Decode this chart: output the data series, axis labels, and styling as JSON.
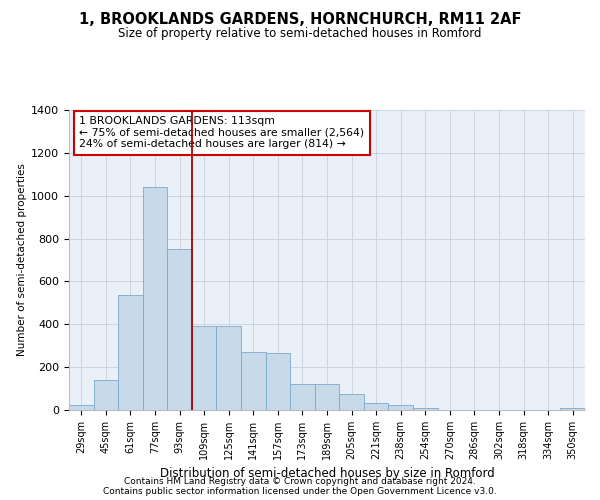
{
  "title1": "1, BROOKLANDS GARDENS, HORNCHURCH, RM11 2AF",
  "title2": "Size of property relative to semi-detached houses in Romford",
  "xlabel": "Distribution of semi-detached houses by size in Romford",
  "ylabel": "Number of semi-detached properties",
  "footnote1": "Contains HM Land Registry data © Crown copyright and database right 2024.",
  "footnote2": "Contains public sector information licensed under the Open Government Licence v3.0.",
  "annotation_line1": "1 BROOKLANDS GARDENS: 113sqm",
  "annotation_line2": "← 75% of semi-detached houses are smaller (2,564)",
  "annotation_line3": "24% of semi-detached houses are larger (814) →",
  "bar_color": "#c8d9ea",
  "bar_edge_color": "#7aaac8",
  "vertical_line_color": "#aa0000",
  "categories": [
    "29sqm",
    "45sqm",
    "61sqm",
    "77sqm",
    "93sqm",
    "109sqm",
    "125sqm",
    "141sqm",
    "157sqm",
    "173sqm",
    "189sqm",
    "205sqm",
    "221sqm",
    "238sqm",
    "254sqm",
    "270sqm",
    "286sqm",
    "302sqm",
    "318sqm",
    "334sqm",
    "350sqm"
  ],
  "values": [
    25,
    140,
    535,
    1040,
    750,
    390,
    390,
    270,
    265,
    120,
    120,
    75,
    35,
    25,
    10,
    0,
    0,
    0,
    0,
    0,
    10
  ],
  "ylim": [
    0,
    1400
  ],
  "yticks": [
    0,
    200,
    400,
    600,
    800,
    1000,
    1200,
    1400
  ],
  "vertical_line_x": 4.5,
  "grid_color": "#ccd5e0",
  "bg_color": "#eaf0f8"
}
